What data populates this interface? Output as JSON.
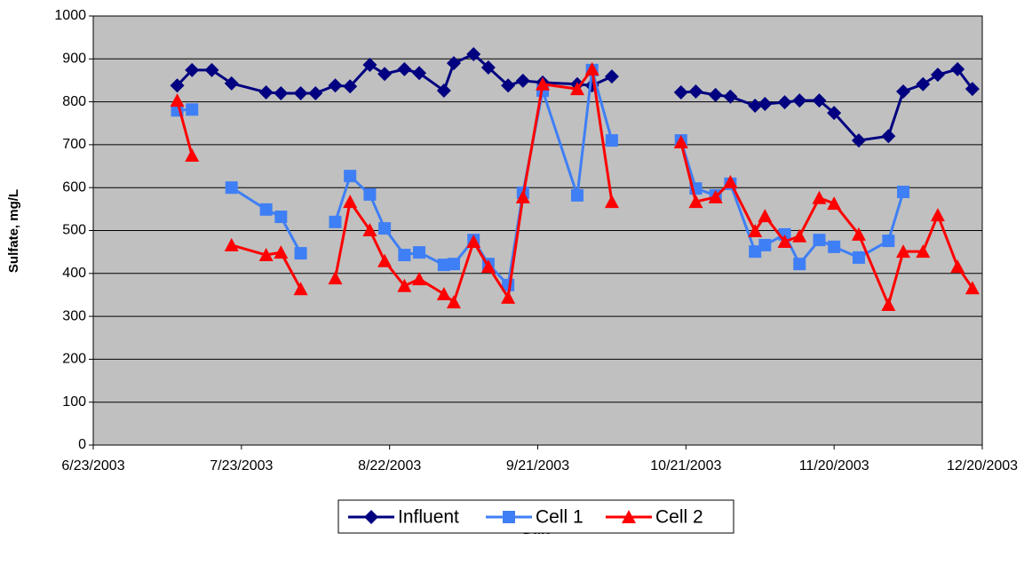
{
  "chart_data": {
    "type": "line",
    "x_label": "Date",
    "y_label": "Sulfate, mg/L",
    "x": [
      "7/10/2003",
      "7/13/2003",
      "7/17/2003",
      "7/21/2003",
      "7/28/2003",
      "7/31/2003",
      "8/4/2003",
      "8/7/2003",
      "8/11/2003",
      "8/14/2003",
      "8/18/2003",
      "8/21/2003",
      "8/25/2003",
      "8/28/2003",
      "9/2/2003",
      "9/4/2003",
      "9/8/2003",
      "9/11/2003",
      "9/15/2003",
      "9/18/2003",
      "9/22/2003",
      "9/29/2003",
      "10/2/2003",
      "10/6/2003",
      "10/13/2003",
      "10/20/2003",
      "10/23/2003",
      "10/27/2003",
      "10/30/2003",
      "11/4/2003",
      "11/6/2003",
      "11/10/2003",
      "11/13/2003",
      "11/17/2003",
      "11/20/2003",
      "11/25/2003",
      "12/1/2003",
      "12/4/2003",
      "12/8/2003",
      "12/11/2003",
      "12/15/2003",
      "12/18/2003"
    ],
    "series": [
      {
        "name": "Influent",
        "color": "#000080",
        "marker": "diamond",
        "values": [
          838,
          874,
          874,
          843,
          822,
          820,
          820,
          820,
          838,
          836,
          886,
          865,
          876,
          867,
          826,
          890,
          911,
          880,
          838,
          849,
          845,
          841,
          838,
          859,
          null,
          822,
          824,
          816,
          812,
          791,
          795,
          799,
          803,
          803,
          774,
          710,
          720,
          824,
          841,
          863,
          876,
          830
        ]
      },
      {
        "name": "Cell 1",
        "color": "#3f7ff5",
        "marker": "square",
        "values": [
          780,
          782,
          null,
          600,
          549,
          532,
          447,
          null,
          520,
          627,
          584,
          505,
          443,
          449,
          420,
          422,
          478,
          422,
          373,
          588,
          826,
          582,
          874,
          710,
          null,
          710,
          598,
          582,
          609,
          451,
          466,
          491,
          422,
          478,
          462,
          437,
          476,
          590,
          null,
          null,
          null,
          null
        ]
      },
      {
        "name": "Cell 2",
        "color": "#ff0000",
        "marker": "triangle",
        "values": [
          803,
          675,
          null,
          466,
          443,
          449,
          364,
          null,
          389,
          567,
          501,
          429,
          371,
          387,
          352,
          333,
          474,
          416,
          344,
          578,
          841,
          830,
          876,
          567,
          null,
          706,
          567,
          578,
          613,
          499,
          534,
          474,
          487,
          576,
          563,
          491,
          327,
          451,
          451,
          536,
          416,
          366
        ]
      }
    ],
    "xlim": [
      "6/23/2003",
      "12/20/2003"
    ],
    "xticks": [
      "6/23/2003",
      "7/23/2003",
      "8/22/2003",
      "9/21/2003",
      "10/21/2003",
      "11/20/2003",
      "12/20/2003"
    ],
    "ylim": [
      0,
      1000
    ],
    "yticks": [
      0,
      100,
      200,
      300,
      400,
      500,
      600,
      700,
      800,
      900,
      1000
    ],
    "grid": true,
    "plot_background": "#c0c0c0",
    "legend": "bottom"
  }
}
